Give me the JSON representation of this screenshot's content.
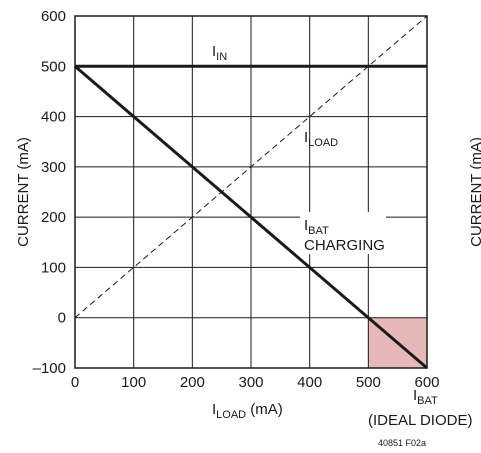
{
  "chart_data": {
    "type": "line",
    "xlabel": {
      "main": "I",
      "sub": "LOAD",
      "unit": " (mA)"
    },
    "ylabel": "CURRENT (mA)",
    "xlim": [
      0,
      600
    ],
    "ylim": [
      -100,
      600
    ],
    "xticks": [
      0,
      100,
      200,
      300,
      400,
      500,
      600
    ],
    "yticks": [
      -100,
      0,
      100,
      200,
      300,
      400,
      500,
      600
    ],
    "grid": true,
    "series": [
      {
        "name": "IIN",
        "style": "solid-thick",
        "x": [
          0,
          600
        ],
        "y": [
          500,
          500
        ]
      },
      {
        "name": "ILOAD",
        "style": "dashed",
        "x": [
          0,
          600
        ],
        "y": [
          0,
          600
        ]
      },
      {
        "name": "IBAT CHARGING",
        "style": "solid-thick",
        "x": [
          0,
          600
        ],
        "y": [
          500,
          -100
        ]
      }
    ],
    "shaded_region": {
      "x": [
        500,
        600
      ],
      "y": [
        -100,
        0
      ],
      "color": "#e6b9b8"
    },
    "annotations": [
      {
        "main": "I",
        "sub": "IN"
      },
      {
        "main": "I",
        "sub": "LOAD"
      },
      {
        "main": "I",
        "sub": "BAT",
        "line2": "CHARGING"
      },
      {
        "main": "I",
        "sub": "BAT",
        "line2": "(IDEAL DIODE)"
      }
    ],
    "figure_code": "40851 F02a",
    "clipped_side_label": "CURRENT (mA)"
  },
  "colors": {
    "grid": "#1a1a1a",
    "line": "#1a1a1a",
    "shade": "#e6b9b8"
  }
}
